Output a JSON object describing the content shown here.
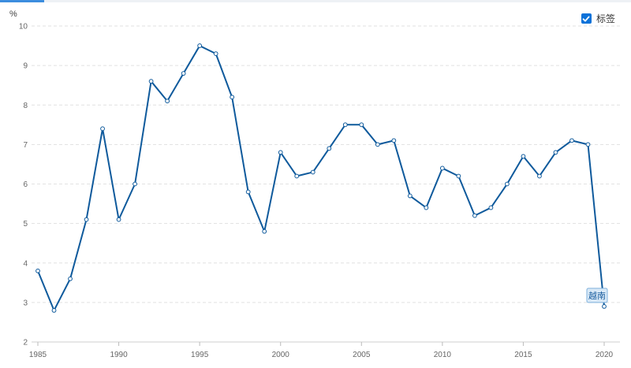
{
  "ui": {
    "label_checkbox_text": "标签",
    "label_checked": true,
    "accent_color": "#3c8dde",
    "checkbox_color": "#0b72d9"
  },
  "chart_data": {
    "type": "line",
    "title": "",
    "xlabel": "",
    "ylabel": "%",
    "x": [
      1985,
      1986,
      1987,
      1988,
      1989,
      1990,
      1991,
      1992,
      1993,
      1994,
      1995,
      1996,
      1997,
      1998,
      1999,
      2000,
      2001,
      2002,
      2003,
      2004,
      2005,
      2006,
      2007,
      2008,
      2009,
      2010,
      2011,
      2012,
      2013,
      2014,
      2015,
      2016,
      2017,
      2018,
      2019,
      2020
    ],
    "series": [
      {
        "name": "越南",
        "color": "#0f5a9c",
        "values": [
          3.8,
          2.8,
          3.6,
          5.1,
          7.4,
          5.1,
          6.0,
          8.6,
          8.1,
          8.8,
          9.5,
          9.3,
          8.2,
          5.8,
          4.8,
          6.8,
          6.2,
          6.3,
          6.9,
          7.5,
          7.5,
          7.0,
          7.1,
          5.7,
          5.4,
          6.4,
          6.2,
          5.2,
          5.4,
          6.0,
          6.7,
          6.2,
          6.8,
          7.1,
          7.0,
          2.9
        ]
      }
    ],
    "xticks": [
      1985,
      1990,
      1995,
      2000,
      2005,
      2010,
      2015,
      2020
    ],
    "yticks": [
      2,
      3,
      4,
      5,
      6,
      7,
      8,
      9,
      10
    ],
    "ylim": [
      2,
      10
    ],
    "xlim": [
      1985,
      2020
    ],
    "grid": true,
    "end_label": "越南"
  }
}
